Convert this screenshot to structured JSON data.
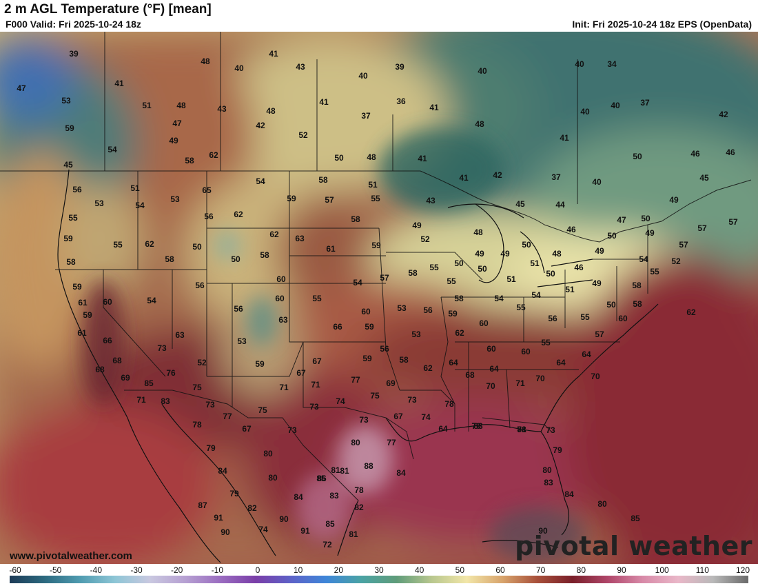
{
  "header": {
    "title": "2 m AGL Temperature (°F) [mean]",
    "valid": "F000 Valid: Fri 2025-10-24 18z",
    "init": "Init: Fri 2025-10-24 18z EPS (OpenData)"
  },
  "footer": {
    "site": "www.pivotalweather.com",
    "brand": "pivotal weather"
  },
  "colorbar": {
    "ticks": [
      "-60",
      "-50",
      "-40",
      "-30",
      "-20",
      "-10",
      "0",
      "10",
      "20",
      "30",
      "40",
      "50",
      "60",
      "70",
      "80",
      "90",
      "100",
      "110",
      "120"
    ],
    "stops": [
      "#1d3b57",
      "#2c6a80",
      "#4f9bb0",
      "#8ec6d6",
      "#c9c8e0",
      "#b6a0d2",
      "#9a6cc0",
      "#7a3ea8",
      "#5d62c8",
      "#3e86d8",
      "#4aa3a4",
      "#5f9c7a",
      "#b8c78e",
      "#f2e6a8",
      "#d8a46c",
      "#a8503a",
      "#7a1f2a",
      "#b0466a",
      "#d88aa8",
      "#e9b7c8",
      "#b9b9b9",
      "#6a6a6a"
    ]
  },
  "map_labels": [
    {
      "t": "39"
    },
    {
      "t": "41"
    },
    {
      "t": "48"
    },
    {
      "t": "40"
    },
    {
      "t": "43"
    },
    {
      "t": "40"
    },
    {
      "t": "39"
    },
    {
      "t": "40"
    },
    {
      "t": "40"
    },
    {
      "t": "34"
    },
    {
      "t": "47"
    },
    {
      "t": "41"
    },
    {
      "t": "53"
    },
    {
      "t": "51"
    },
    {
      "t": "48"
    },
    {
      "t": "43"
    },
    {
      "t": "48"
    },
    {
      "t": "41"
    },
    {
      "t": "36"
    },
    {
      "t": "41"
    },
    {
      "t": "40"
    },
    {
      "t": "37"
    },
    {
      "t": "42"
    },
    {
      "t": "59"
    },
    {
      "t": "47"
    },
    {
      "t": "42"
    },
    {
      "t": "37"
    },
    {
      "t": "48"
    },
    {
      "t": "52"
    },
    {
      "t": "49"
    },
    {
      "t": "40"
    },
    {
      "t": "54"
    },
    {
      "t": "58"
    },
    {
      "t": "62"
    },
    {
      "t": "50"
    },
    {
      "t": "48"
    },
    {
      "t": "41"
    },
    {
      "t": "41"
    },
    {
      "t": "46"
    },
    {
      "t": "50"
    },
    {
      "t": "45"
    },
    {
      "t": "56"
    },
    {
      "t": "51"
    },
    {
      "t": "65"
    },
    {
      "t": "54"
    },
    {
      "t": "58"
    },
    {
      "t": "51"
    },
    {
      "t": "41"
    },
    {
      "t": "42"
    },
    {
      "t": "37"
    },
    {
      "t": "40"
    },
    {
      "t": "46"
    },
    {
      "t": "45"
    },
    {
      "t": "53"
    },
    {
      "t": "54"
    },
    {
      "t": "53"
    },
    {
      "t": "59"
    },
    {
      "t": "57"
    },
    {
      "t": "55"
    },
    {
      "t": "43"
    },
    {
      "t": "45"
    },
    {
      "t": "44"
    },
    {
      "t": "49"
    },
    {
      "t": "55"
    },
    {
      "t": "56"
    },
    {
      "t": "62"
    },
    {
      "t": "58"
    },
    {
      "t": "49"
    },
    {
      "t": "47"
    },
    {
      "t": "50"
    },
    {
      "t": "57"
    },
    {
      "t": "57"
    },
    {
      "t": "59"
    },
    {
      "t": "55"
    },
    {
      "t": "62"
    },
    {
      "t": "50"
    },
    {
      "t": "62"
    },
    {
      "t": "63"
    },
    {
      "t": "52"
    },
    {
      "t": "48"
    },
    {
      "t": "46"
    },
    {
      "t": "50"
    },
    {
      "t": "49"
    },
    {
      "t": "57"
    },
    {
      "t": "58"
    },
    {
      "t": "58"
    },
    {
      "t": "50"
    },
    {
      "t": "58"
    },
    {
      "t": "61"
    },
    {
      "t": "59"
    },
    {
      "t": "49"
    },
    {
      "t": "49"
    },
    {
      "t": "50"
    },
    {
      "t": "48"
    },
    {
      "t": "49"
    },
    {
      "t": "54"
    },
    {
      "t": "52"
    },
    {
      "t": "61"
    },
    {
      "t": "50"
    },
    {
      "t": "55"
    },
    {
      "t": "50"
    },
    {
      "t": "51"
    },
    {
      "t": "46"
    },
    {
      "t": "55"
    },
    {
      "t": "59"
    },
    {
      "t": "56"
    },
    {
      "t": "60"
    },
    {
      "t": "54"
    },
    {
      "t": "57"
    },
    {
      "t": "58"
    },
    {
      "t": "55"
    },
    {
      "t": "51"
    },
    {
      "t": "50"
    },
    {
      "t": "51"
    },
    {
      "t": "49"
    },
    {
      "t": "58"
    },
    {
      "t": "60"
    },
    {
      "t": "54"
    },
    {
      "t": "60"
    },
    {
      "t": "55"
    },
    {
      "t": "58"
    },
    {
      "t": "54"
    },
    {
      "t": "54"
    },
    {
      "t": "50"
    },
    {
      "t": "58"
    },
    {
      "t": "59"
    },
    {
      "t": "56"
    },
    {
      "t": "63"
    },
    {
      "t": "60"
    },
    {
      "t": "53"
    },
    {
      "t": "56"
    },
    {
      "t": "59"
    },
    {
      "t": "55"
    },
    {
      "t": "56"
    },
    {
      "t": "55"
    },
    {
      "t": "60"
    },
    {
      "t": "61"
    },
    {
      "t": "66"
    },
    {
      "t": "59"
    },
    {
      "t": "60"
    },
    {
      "t": "57"
    },
    {
      "t": "62"
    },
    {
      "t": "66"
    },
    {
      "t": "63"
    },
    {
      "t": "53"
    },
    {
      "t": "53"
    },
    {
      "t": "62"
    },
    {
      "t": "55"
    },
    {
      "t": "64"
    },
    {
      "t": "73"
    },
    {
      "t": "52"
    },
    {
      "t": "59"
    },
    {
      "t": "67"
    },
    {
      "t": "56"
    },
    {
      "t": "60"
    },
    {
      "t": "60"
    },
    {
      "t": "64"
    },
    {
      "t": "68"
    },
    {
      "t": "68"
    },
    {
      "t": "76"
    },
    {
      "t": "67"
    },
    {
      "t": "59"
    },
    {
      "t": "58"
    },
    {
      "t": "64"
    },
    {
      "t": "62"
    },
    {
      "t": "68"
    },
    {
      "t": "64"
    },
    {
      "t": "69"
    },
    {
      "t": "85"
    },
    {
      "t": "71"
    },
    {
      "t": "71"
    },
    {
      "t": "77"
    },
    {
      "t": "69"
    },
    {
      "t": "70"
    },
    {
      "t": "71"
    },
    {
      "t": "70"
    },
    {
      "t": "70"
    },
    {
      "t": "71"
    },
    {
      "t": "83"
    },
    {
      "t": "75"
    },
    {
      "t": "74"
    },
    {
      "t": "75"
    },
    {
      "t": "73"
    },
    {
      "t": "73"
    },
    {
      "t": "77"
    },
    {
      "t": "75"
    },
    {
      "t": "73"
    },
    {
      "t": "73"
    },
    {
      "t": "67"
    },
    {
      "t": "74"
    },
    {
      "t": "78"
    },
    {
      "t": "79"
    },
    {
      "t": "73"
    },
    {
      "t": "78"
    },
    {
      "t": "67"
    },
    {
      "t": "73"
    },
    {
      "t": "64"
    },
    {
      "t": "83"
    },
    {
      "t": "81"
    },
    {
      "t": "79"
    },
    {
      "t": "80"
    },
    {
      "t": "80"
    },
    {
      "t": "77"
    },
    {
      "t": "79"
    },
    {
      "t": "78"
    },
    {
      "t": "84"
    },
    {
      "t": "81"
    },
    {
      "t": "81"
    },
    {
      "t": "84"
    },
    {
      "t": "85"
    },
    {
      "t": "80"
    },
    {
      "t": "80"
    },
    {
      "t": "86"
    },
    {
      "t": "88"
    },
    {
      "t": "83"
    },
    {
      "t": "79"
    },
    {
      "t": "84"
    },
    {
      "t": "83"
    },
    {
      "t": "78"
    },
    {
      "t": "84"
    },
    {
      "t": "87"
    },
    {
      "t": "82"
    },
    {
      "t": "90"
    },
    {
      "t": "82"
    },
    {
      "t": "80"
    },
    {
      "t": "91"
    },
    {
      "t": "85"
    },
    {
      "t": "85"
    },
    {
      "t": "90"
    },
    {
      "t": "74"
    },
    {
      "t": "91"
    },
    {
      "t": "81"
    },
    {
      "t": "90"
    },
    {
      "t": "72"
    },
    {
      "t": "82"
    },
    {
      "t": "85"
    },
    {
      "t": "84"
    },
    {
      "t": "74"
    },
    {
      "t": "87"
    },
    {
      "t": "81"
    },
    {
      "t": "75"
    }
  ]
}
